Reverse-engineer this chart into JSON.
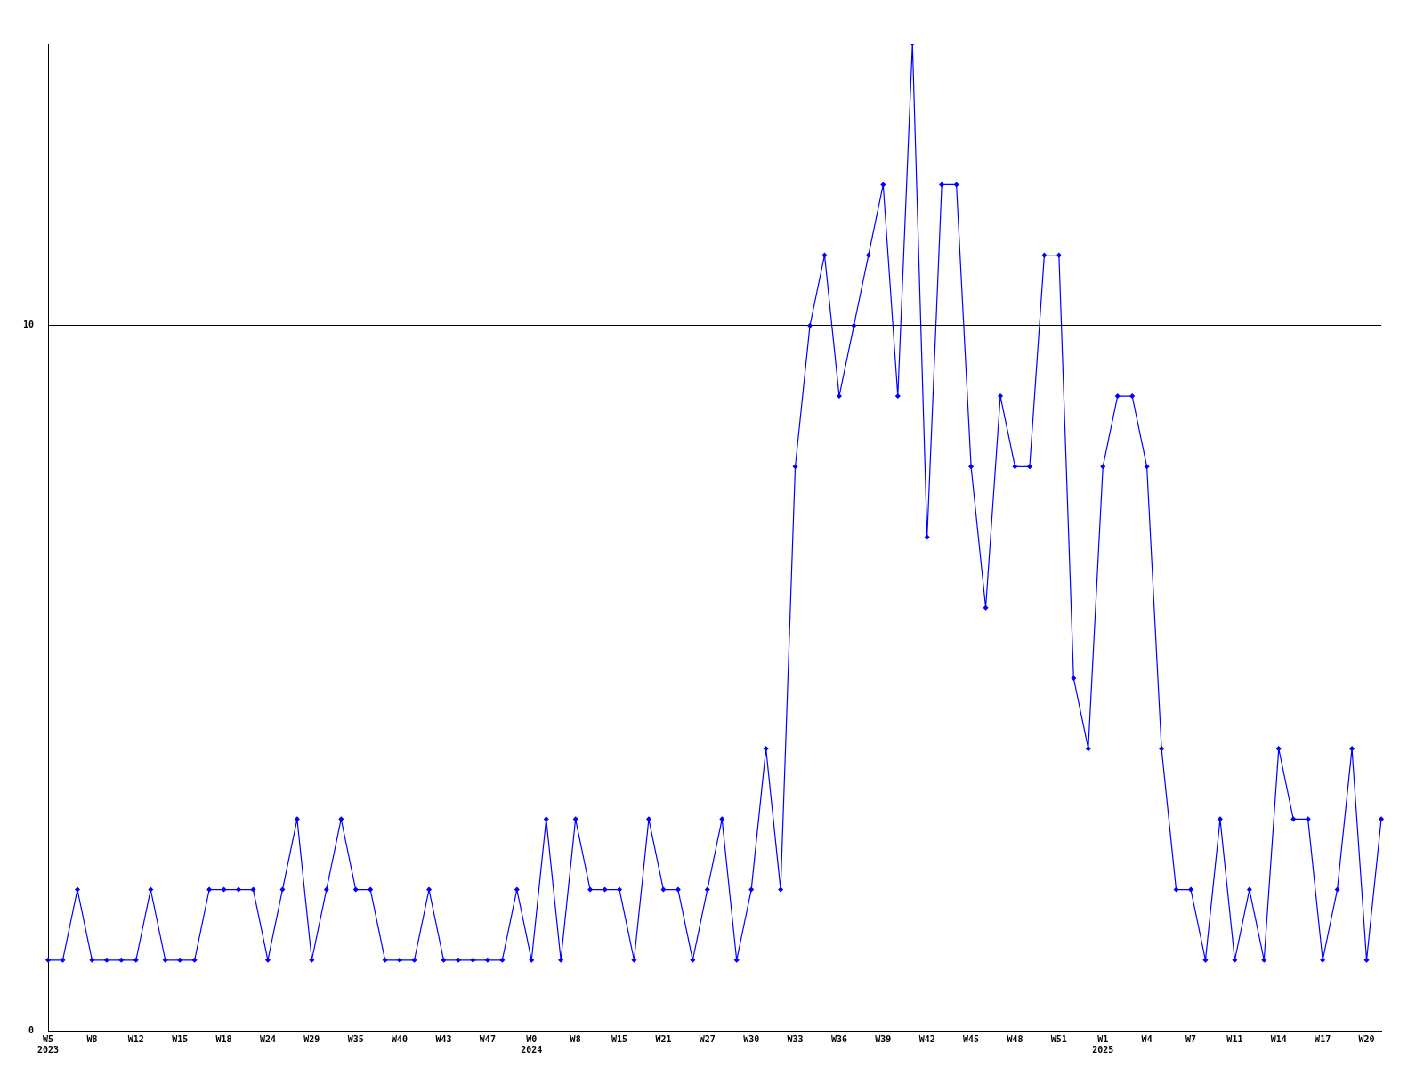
{
  "chart_data": {
    "type": "line",
    "categories": [
      "W5\n2023",
      null,
      null,
      "W8",
      null,
      null,
      "W12",
      null,
      null,
      "W15",
      null,
      null,
      "W18",
      null,
      null,
      "W24",
      null,
      null,
      "W29",
      null,
      null,
      "W35",
      null,
      null,
      "W40",
      null,
      null,
      "W43",
      null,
      null,
      "W47",
      null,
      null,
      "W0\n2024",
      null,
      null,
      "W8",
      null,
      null,
      "W15",
      null,
      null,
      "W21",
      null,
      null,
      "W27",
      null,
      null,
      "W30",
      null,
      null,
      "W33",
      null,
      null,
      "W36",
      null,
      null,
      "W39",
      null,
      null,
      "W42",
      null,
      null,
      "W45",
      null,
      null,
      "W48",
      null,
      null,
      "W51",
      null,
      null,
      "W1\n2025",
      null,
      null,
      "W4",
      null,
      null,
      "W7",
      null,
      null,
      "W11",
      null,
      null,
      "W14",
      null,
      null,
      "W17",
      null,
      null,
      "W20",
      null
    ],
    "series": [
      {
        "color": "#0000ff",
        "values": [
          1,
          1,
          2,
          1,
          1,
          1,
          1,
          2,
          1,
          1,
          1,
          2,
          2,
          2,
          2,
          1,
          2,
          3,
          1,
          2,
          3,
          2,
          2,
          1,
          1,
          1,
          2,
          1,
          1,
          1,
          1,
          1,
          2,
          1,
          3,
          1,
          3,
          2,
          2,
          2,
          1,
          3,
          2,
          2,
          1,
          2,
          3,
          1,
          2,
          4,
          2,
          8,
          10,
          11,
          9,
          10,
          11,
          12,
          9,
          14,
          7,
          12,
          12,
          8,
          6,
          9,
          8,
          8,
          11,
          11,
          5,
          4,
          8,
          9,
          9,
          8,
          4,
          2,
          2,
          1,
          3,
          1,
          2,
          1,
          4,
          3,
          3,
          1,
          2,
          4,
          1,
          3
        ]
      }
    ],
    "ylim": [
      0,
      14
    ],
    "yticks": [
      0,
      10
    ],
    "grid": "y",
    "marker": "diamond",
    "line_style": "solid",
    "legend": false
  }
}
